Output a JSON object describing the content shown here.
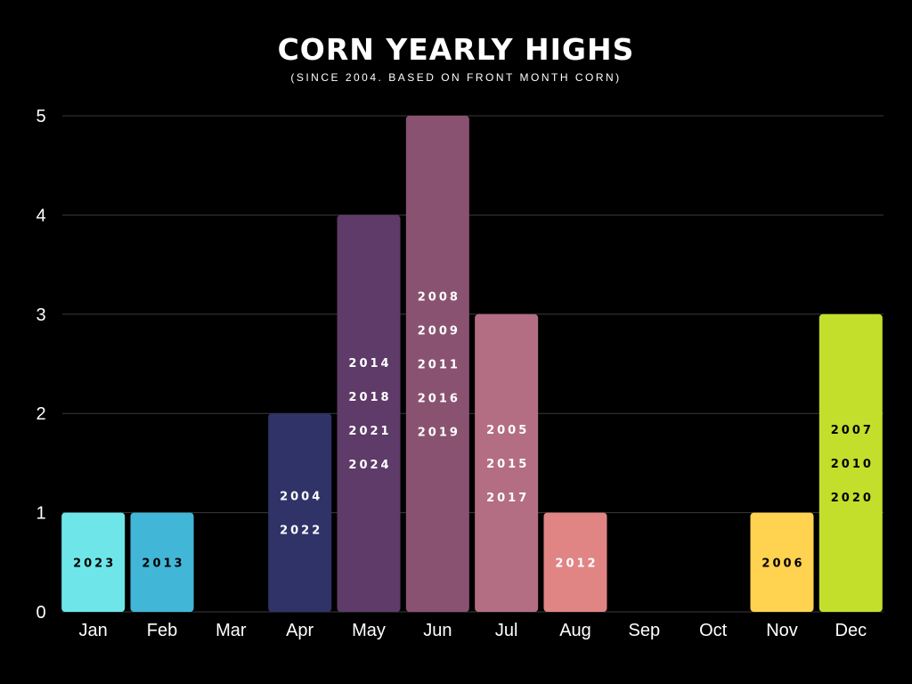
{
  "chart_data": {
    "type": "bar",
    "title": "CORN YEARLY HIGHS",
    "subtitle": "(SINCE 2004. BASED ON FRONT MONTH CORN)",
    "categories": [
      "Jan",
      "Feb",
      "Mar",
      "Apr",
      "May",
      "Jun",
      "Jul",
      "Aug",
      "Sep",
      "Oct",
      "Nov",
      "Dec"
    ],
    "values": [
      1,
      1,
      0,
      2,
      4,
      5,
      3,
      1,
      0,
      0,
      1,
      3
    ],
    "bar_labels": [
      [
        "2023"
      ],
      [
        "2013"
      ],
      [],
      [
        "2004",
        "2022"
      ],
      [
        "2014",
        "2018",
        "2021",
        "2024"
      ],
      [
        "2008",
        "2009",
        "2011",
        "2016",
        "2019"
      ],
      [
        "2005",
        "2015",
        "2017"
      ],
      [
        "2012"
      ],
      [],
      [],
      [
        "2006"
      ],
      [
        "2007",
        "2010",
        "2020"
      ]
    ],
    "colors": [
      "#6ee6e9",
      "#42b6d7",
      "#2a3a6b",
      "#2f3368",
      "#5e3b68",
      "#8a5271",
      "#b46e84",
      "#e18484",
      "#444444",
      "#444444",
      "#ffd24f",
      "#c4de2c"
    ],
    "label_colors": [
      "#000000",
      "#000000",
      "#ffffff",
      "#ffffff",
      "#ffffff",
      "#ffffff",
      "#ffffff",
      "#ffffff",
      "#ffffff",
      "#ffffff",
      "#000000",
      "#000000"
    ],
    "y_ticks": [
      0,
      1,
      2,
      3,
      4,
      5
    ],
    "ylim": [
      0,
      5
    ],
    "grid": true,
    "xlabel": "",
    "ylabel": ""
  }
}
